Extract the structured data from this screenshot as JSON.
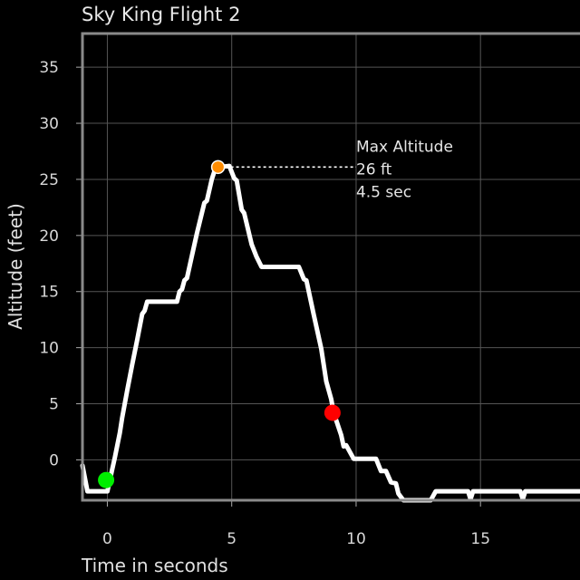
{
  "chart_data": {
    "type": "line",
    "title": "Sky King Flight 2",
    "xlabel": "Time in seconds",
    "ylabel": "Altitude (feet)",
    "xlim": [
      -1,
      19
    ],
    "ylim": [
      -3.6,
      38
    ],
    "xticks": [
      "0",
      "5",
      "10",
      "15"
    ],
    "yticks": [
      "0",
      "5",
      "10",
      "15",
      "20",
      "25",
      "30",
      "35"
    ],
    "grid": true,
    "series": [
      {
        "color": "#ffffff",
        "x": [
          -1.0,
          -0.8,
          0.0,
          0.1,
          0.3,
          0.5,
          0.6,
          0.8,
          1.0,
          1.2,
          1.4,
          1.5,
          1.6,
          2.0,
          2.5,
          2.8,
          2.9,
          3.0,
          3.1,
          3.2,
          3.4,
          3.6,
          3.9,
          4.0,
          4.2,
          4.3,
          4.5,
          4.9,
          5.1,
          5.2,
          5.4,
          5.5,
          5.8,
          6.0,
          6.2,
          6.7,
          7.2,
          7.7,
          7.9,
          8.0,
          8.3,
          8.6,
          8.8,
          9.0,
          9.1,
          9.4,
          9.5,
          9.6,
          9.9,
          10.2,
          10.5,
          10.8,
          11.0,
          11.2,
          11.4,
          11.6,
          11.7,
          11.9,
          12.5,
          13.0,
          13.2,
          13.5,
          14.5,
          14.6,
          14.7,
          15.0,
          16.0,
          16.6,
          16.7,
          16.8,
          17.2,
          18.0,
          19.0
        ],
        "y": [
          -0.5,
          -2.8,
          -2.8,
          -1.8,
          0.2,
          2.4,
          3.8,
          6.2,
          8.5,
          10.7,
          13.0,
          13.3,
          14.1,
          14.1,
          14.1,
          14.1,
          15.0,
          15.2,
          16.0,
          16.2,
          18.2,
          20.2,
          22.9,
          23.1,
          25.0,
          25.7,
          26.1,
          26.2,
          25.1,
          24.9,
          22.3,
          22.0,
          19.2,
          18.1,
          17.2,
          17.2,
          17.2,
          17.2,
          16.1,
          16.0,
          12.9,
          9.9,
          7.0,
          5.4,
          4.2,
          2.2,
          1.2,
          1.3,
          0.1,
          0.1,
          0.1,
          0.1,
          -1.0,
          -1.0,
          -2.0,
          -2.1,
          -3.0,
          -3.6,
          -3.6,
          -3.6,
          -2.8,
          -2.8,
          -2.8,
          -3.5,
          -2.8,
          -2.8,
          -2.8,
          -2.8,
          -3.5,
          -2.8,
          -2.8,
          -2.8,
          -2.8
        ]
      }
    ],
    "markers": [
      {
        "x": -0.05,
        "y": -1.8,
        "color": "#00ee00"
      },
      {
        "x": 4.45,
        "y": 26.1,
        "color": "#ff8c00"
      },
      {
        "x": 9.05,
        "y": 4.2,
        "color": "#ff0000"
      }
    ],
    "annotation": {
      "lines": [
        "Max Altitude",
        "26 ft",
        "4.5  sec"
      ],
      "x_start": 4.45,
      "x_end": 10.0,
      "y": 26.1
    }
  }
}
